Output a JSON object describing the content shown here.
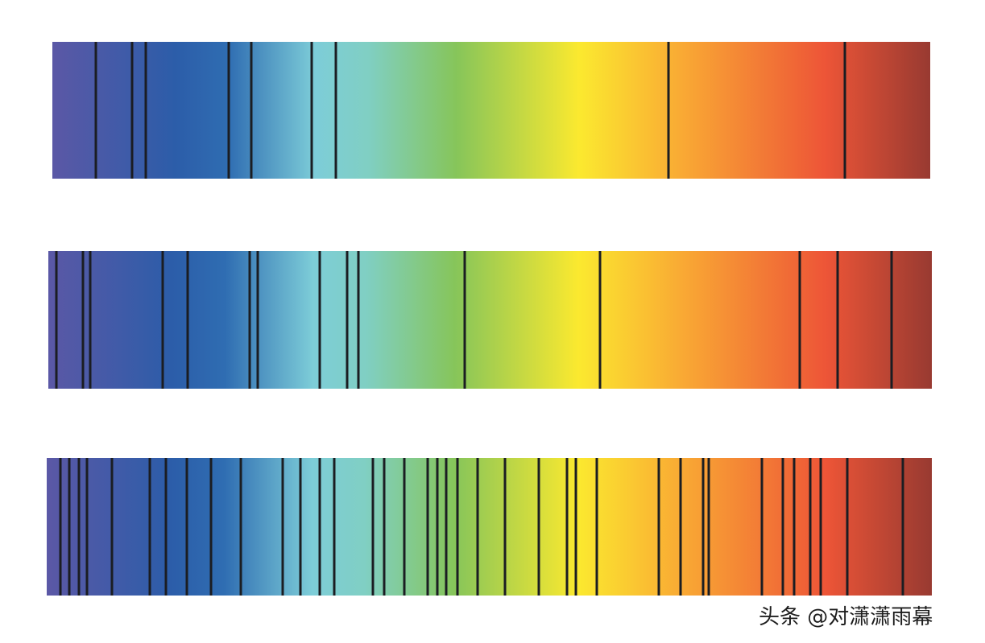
{
  "watermark": "头条 @对潇潇雨幕"
}
